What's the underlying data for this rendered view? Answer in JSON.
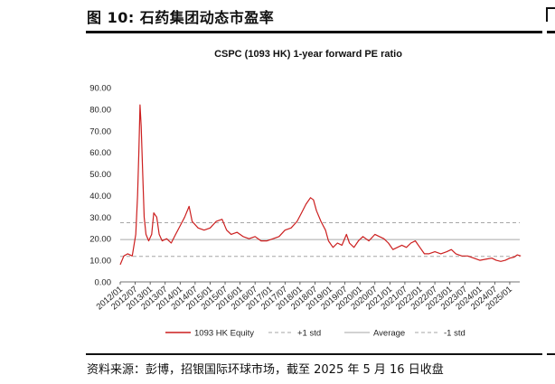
{
  "figure": {
    "title": "图 10: 石药集团动态市盈率",
    "source": "资料来源：彭博，招银国际环球市场，截至 2025 年 5 月 16 日收盘"
  },
  "chart_data": {
    "type": "line",
    "title": "CSPC (1093 HK) 1-year forward PE ratio",
    "ylim": [
      0,
      90
    ],
    "y_ticks": [
      "90.00",
      "80.00",
      "70.00",
      "60.00",
      "50.00",
      "40.00",
      "30.00",
      "20.00",
      "10.00",
      "0.00"
    ],
    "x_ticks": [
      "2012/01",
      "2012/07",
      "2013/01",
      "2013/07",
      "2014/01",
      "2014/07",
      "2015/01",
      "2015/07",
      "2016/01",
      "2016/07",
      "2017/01",
      "2017/07",
      "2018/01",
      "2018/07",
      "2019/01",
      "2019/07",
      "2020/01",
      "2020/07",
      "2021/01",
      "2021/07",
      "2022/01",
      "2022/07",
      "2023/01",
      "2023/07",
      "2024/01",
      "2024/07",
      "2025/01"
    ],
    "x_range": [
      "2012/01",
      "2025/05"
    ],
    "grid": false,
    "legend_position": "bottom",
    "series": [
      {
        "name": "1093 HK Equity",
        "color": "#cc1f1f",
        "style": "solid",
        "points": [
          [
            2012.0,
            8
          ],
          [
            2012.12,
            12
          ],
          [
            2012.25,
            13
          ],
          [
            2012.4,
            12
          ],
          [
            2012.52,
            22
          ],
          [
            2012.58,
            40
          ],
          [
            2012.62,
            60
          ],
          [
            2012.66,
            82
          ],
          [
            2012.7,
            72
          ],
          [
            2012.75,
            50
          ],
          [
            2012.8,
            30
          ],
          [
            2012.86,
            22
          ],
          [
            2012.95,
            19
          ],
          [
            2013.05,
            22
          ],
          [
            2013.12,
            32
          ],
          [
            2013.22,
            30
          ],
          [
            2013.3,
            22
          ],
          [
            2013.4,
            19
          ],
          [
            2013.55,
            20
          ],
          [
            2013.7,
            18
          ],
          [
            2013.85,
            22
          ],
          [
            2014.0,
            26
          ],
          [
            2014.15,
            30
          ],
          [
            2014.3,
            35
          ],
          [
            2014.4,
            28
          ],
          [
            2014.6,
            25
          ],
          [
            2014.8,
            24
          ],
          [
            2015.0,
            25
          ],
          [
            2015.2,
            28
          ],
          [
            2015.4,
            29
          ],
          [
            2015.55,
            24
          ],
          [
            2015.7,
            22
          ],
          [
            2015.9,
            23
          ],
          [
            2016.1,
            21
          ],
          [
            2016.3,
            20
          ],
          [
            2016.5,
            21
          ],
          [
            2016.7,
            19
          ],
          [
            2016.9,
            19
          ],
          [
            2017.1,
            20
          ],
          [
            2017.3,
            21
          ],
          [
            2017.5,
            24
          ],
          [
            2017.7,
            25
          ],
          [
            2017.9,
            28
          ],
          [
            2018.05,
            32
          ],
          [
            2018.2,
            36
          ],
          [
            2018.35,
            39
          ],
          [
            2018.45,
            38
          ],
          [
            2018.55,
            33
          ],
          [
            2018.7,
            28
          ],
          [
            2018.85,
            24
          ],
          [
            2018.95,
            19
          ],
          [
            2019.1,
            16
          ],
          [
            2019.25,
            18
          ],
          [
            2019.4,
            17
          ],
          [
            2019.55,
            22
          ],
          [
            2019.65,
            18
          ],
          [
            2019.8,
            16
          ],
          [
            2019.95,
            19
          ],
          [
            2020.1,
            21
          ],
          [
            2020.3,
            19
          ],
          [
            2020.5,
            22
          ],
          [
            2020.65,
            21
          ],
          [
            2020.8,
            20
          ],
          [
            2020.95,
            18
          ],
          [
            2021.1,
            15
          ],
          [
            2021.25,
            16
          ],
          [
            2021.4,
            17
          ],
          [
            2021.55,
            16
          ],
          [
            2021.7,
            18
          ],
          [
            2021.85,
            19
          ],
          [
            2022.0,
            16
          ],
          [
            2022.15,
            13
          ],
          [
            2022.3,
            13
          ],
          [
            2022.5,
            14
          ],
          [
            2022.7,
            13
          ],
          [
            2022.9,
            14
          ],
          [
            2023.05,
            15
          ],
          [
            2023.2,
            13
          ],
          [
            2023.4,
            12
          ],
          [
            2023.6,
            12
          ],
          [
            2023.8,
            11
          ],
          [
            2024.0,
            10
          ],
          [
            2024.2,
            10.5
          ],
          [
            2024.4,
            11
          ],
          [
            2024.55,
            10
          ],
          [
            2024.7,
            9.5
          ],
          [
            2024.85,
            10
          ],
          [
            2025.0,
            11
          ],
          [
            2025.15,
            11.5
          ],
          [
            2025.25,
            12.5
          ],
          [
            2025.37,
            12
          ]
        ]
      },
      {
        "name": "+1 std",
        "color": "#a6a6a6",
        "style": "dashed",
        "value": 27.4
      },
      {
        "name": "Average",
        "color": "#a6a6a6",
        "style": "solid",
        "value": 19.6
      },
      {
        "name": "-1 std",
        "color": "#a6a6a6",
        "style": "dashed",
        "value": 11.8
      }
    ]
  }
}
